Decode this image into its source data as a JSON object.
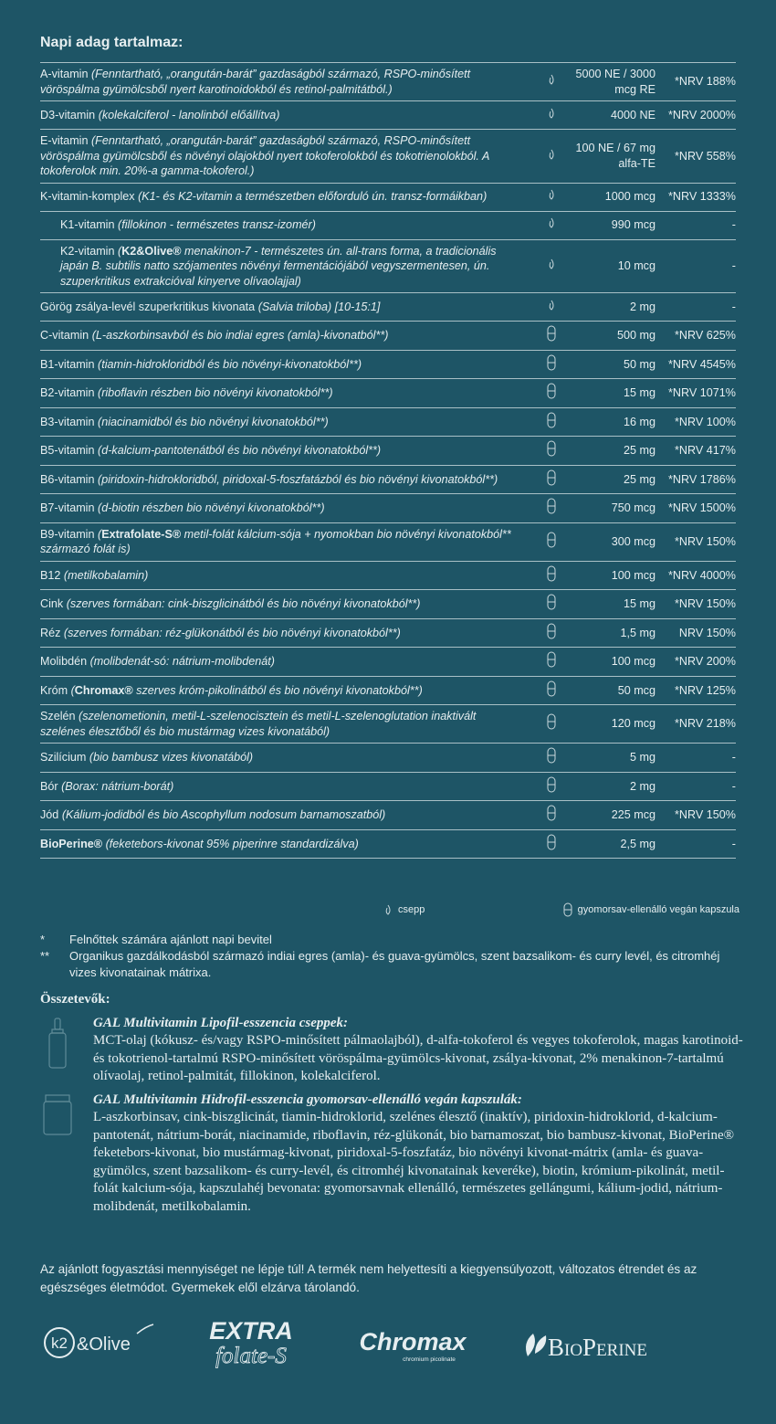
{
  "header": {
    "title": "Napi adag tartalmaz:"
  },
  "table": {
    "rows": [
      {
        "name": "A-vitamin",
        "desc": "(Fenntartható, „orangután-barát” gazdaságból származó, RSPO-minősített vöröspálma gyümölcsből nyert karotinoidokból és retinol-palmitátból.)",
        "icon": "drop",
        "amount": "5000 NE / 3000 mcg RE",
        "nrv": "*NRV 188%"
      },
      {
        "name": "D3-vitamin",
        "desc": "(kolekalciferol - lanolinból előállítva)",
        "icon": "drop",
        "amount": "4000 NE",
        "nrv": "*NRV 2000%"
      },
      {
        "name": "E-vitamin",
        "desc": "(Fenntartható, „orangután-barát” gazdaságból származó, RSPO-minősített vöröspálma gyümölcsből és növényi olajokból nyert tokoferolokból és tokotrienolokból. A tokoferolok min. 20%-a gamma-tokoferol.)",
        "icon": "drop",
        "amount": "100 NE / 67 mg alfa-TE",
        "nrv": "*NRV 558%"
      },
      {
        "name": "K-vitamin-komplex",
        "desc": "(K1- és K2-vitamin a természetben előforduló ún. transz-formáikban)",
        "icon": "drop",
        "amount": "1000 mcg",
        "nrv": "*NRV 1333%"
      },
      {
        "name": "K1-vitamin",
        "desc": "(fillokinon - természetes transz-izomér)",
        "icon": "drop",
        "amount": "990 mcg",
        "nrv": "-",
        "indent": true
      },
      {
        "name": "K2-vitamin",
        "pre": "(",
        "brand": "K2&Olive®",
        "desc": "menakinon-7 - természetes ún. all-trans forma, a tradicionális japán B. subtilis natto szójamentes növényi fermentációjából vegyszermentesen, ún. szuperkritikus extrakcióval kinyerve olívaolajjal)",
        "icon": "drop",
        "amount": "10 mcg",
        "nrv": "-",
        "indent": true
      },
      {
        "name": "Görög zsálya-levél szuperkritikus kivonata",
        "desc": "(Salvia triloba) [10-15:1]",
        "icon": "drop",
        "amount": "2 mg",
        "nrv": "-"
      },
      {
        "name": "C-vitamin",
        "desc": "(L-aszkorbinsavból és bio indiai egres (amla)-kivonatból**)",
        "icon": "capsule",
        "amount": "500 mg",
        "nrv": "*NRV 625%"
      },
      {
        "name": "B1-vitamin",
        "desc": "(tiamin-hidrokloridból és bio növényi-kivonatokból**)",
        "icon": "capsule",
        "amount": "50 mg",
        "nrv": "*NRV 4545%"
      },
      {
        "name": "B2-vitamin",
        "desc": "(riboflavin részben bio növényi kivonatokból**)",
        "icon": "capsule",
        "amount": "15 mg",
        "nrv": "*NRV 1071%"
      },
      {
        "name": "B3-vitamin",
        "desc": "(niacinamidból és bio növényi kivonatokból**)",
        "icon": "capsule",
        "amount": "16 mg",
        "nrv": "*NRV 100%"
      },
      {
        "name": "B5-vitamin",
        "desc": "(d-kalcium-pantotenátból és bio növényi kivonatokból**)",
        "icon": "capsule",
        "amount": "25 mg",
        "nrv": "*NRV 417%"
      },
      {
        "name": "B6-vitamin",
        "desc": "(piridoxin-hidrokloridból, piridoxal-5-foszfatázból és bio növényi kivonatokból**)",
        "icon": "capsule",
        "amount": "25 mg",
        "nrv": "*NRV 1786%"
      },
      {
        "name": "B7-vitamin",
        "desc": "(d-biotin részben bio növényi kivonatokból**)",
        "icon": "capsule",
        "amount": "750 mcg",
        "nrv": "*NRV 1500%"
      },
      {
        "name": "B9-vitamin",
        "pre": "(",
        "brand": "Extrafolate-S®",
        "desc": "metil-folát kálcium-sója + nyomokban bio növényi kivonatokból** származó folát is)",
        "icon": "capsule",
        "amount": "300 mcg",
        "nrv": "*NRV 150%"
      },
      {
        "name": "B12",
        "desc": "(metilkobalamin)",
        "icon": "capsule",
        "amount": "100 mcg",
        "nrv": "*NRV 4000%"
      },
      {
        "name": "Cink",
        "desc": "(szerves formában: cink-biszglicinátból és bio növényi kivonatokból**)",
        "icon": "capsule",
        "amount": "15 mg",
        "nrv": "*NRV 150%"
      },
      {
        "name": "Réz",
        "desc": "(szerves formában: réz-glükonátból és bio növényi kivonatokból**)",
        "icon": "capsule",
        "amount": "1,5 mg",
        "nrv": "NRV 150%"
      },
      {
        "name": "Molibdén",
        "desc": "(molibdenát-só: nátrium-molibdenát)",
        "icon": "capsule",
        "amount": "100 mcg",
        "nrv": "*NRV 200%"
      },
      {
        "name": "Króm",
        "pre": "(",
        "brand": "Chromax®",
        "desc": "szerves króm-pikolinátból és bio növényi kivonatokból**)",
        "icon": "capsule",
        "amount": "50 mcg",
        "nrv": "*NRV 125%"
      },
      {
        "name": "Szelén",
        "desc": "(szelenometionin, metil-L-szelenocisztein és metil-L-szelenoglutation inaktivált szelénes élesztőből és bio mustármag vizes kivonatából)",
        "icon": "capsule",
        "amount": "120 mcg",
        "nrv": "*NRV 218%"
      },
      {
        "name": "Szilícium",
        "desc": "(bio bambusz vizes kivonatából)",
        "icon": "capsule",
        "amount": "5 mg",
        "nrv": "-"
      },
      {
        "name": "Bór",
        "desc": "(Borax: nátrium-borát)",
        "icon": "capsule",
        "amount": "2 mg",
        "nrv": "-"
      },
      {
        "name": "Jód",
        "desc": "(Kálium-jodidból és bio Ascophyllum nodosum barnamoszatból)",
        "icon": "capsule",
        "amount": "225 mcg",
        "nrv": "*NRV 150%"
      },
      {
        "brand": "BioPerine®",
        "desc": "(feketebors-kivonat 95% piperinre standardizálva)",
        "icon": "capsule",
        "amount": "2,5 mg",
        "nrv": "-"
      }
    ]
  },
  "legend": {
    "drop": "csepp",
    "capsule": "gyomorsav-ellenálló vegán kapszula"
  },
  "footnotes": [
    {
      "mark": "*",
      "text": "Felnőttek számára ajánlott napi bevitel"
    },
    {
      "mark": "**",
      "text": "Organikus gazdálkodásból származó indiai egres (amla)- és guava-gyümölcs, szent bazsalikom- és curry levél, és citromhéj vizes kivonatainak mátrixa."
    }
  ],
  "ingredients": {
    "title": "Összetevők:",
    "items": [
      {
        "icon": "bottle",
        "heading": "GAL Multivitamin Lipofil-esszencia cseppek:",
        "text": "MCT-olaj (kókusz- és/vagy RSPO-minősített pálmaolajból), d-alfa-tokoferol és vegyes tokoferolok, magas karotinoid- és tokotrienol-tartalmú RSPO-minősített vöröspálma-gyümölcs-kivonat, zsálya-kivonat, 2% menakinon-7-tartalmú olívaolaj, retinol-palmitát, fillokinon, kolekalciferol."
      },
      {
        "icon": "jar",
        "heading": "GAL Multivitamin Hidrofil-esszencia gyomorsav-ellenálló vegán kapszulák:",
        "text": "L-aszkorbinsav, cink-biszglicinát, tiamin-hidroklorid, szelénes élesztő (inaktív), piridoxin-hidroklorid, d-kalcium-pantotenát, nátrium-borát, niacinamide, riboflavin, réz-glükonát, bio barnamoszat, bio bambusz-kivonat, BioPerine® feketebors-kivonat, bio mustármag-kivonat, piridoxal-5-foszfatáz, bio növényi kivonat-mátrix (amla- és guava-gyümölcs, szent bazsalikom- és curry-levél, és citromhéj kivonatainak keveréke), biotin, krómium-pikolinát, metil-folát kalcium-sója, kapszulahéj bevonata: gyomorsavnak ellenálló, természetes gellángumi, kálium-jodid, nátrium-molibdenát, metilkobalamin."
      }
    ]
  },
  "warning": "Az ajánlott fogyasztási mennyiséget ne lépje túl! A termék nem helyettesíti a kiegyensúlyozott, változatos étrendet és az egészséges életmódot. Gyermekek elől elzárva tárolandó.",
  "logos": [
    {
      "main": "k2",
      "sub": "&Olive"
    },
    {
      "main": "EXTRA",
      "sub": "folate-S"
    },
    {
      "main": "Chromax",
      "sub": "chromium picolinate"
    },
    {
      "main": "BioPerine"
    }
  ]
}
